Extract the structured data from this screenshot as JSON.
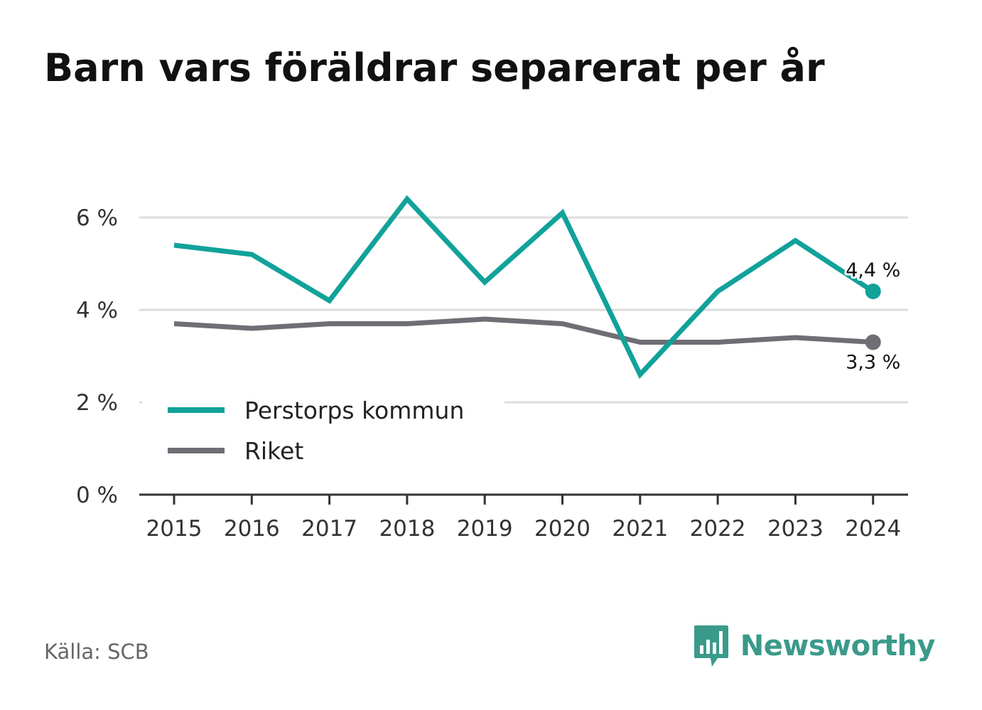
{
  "chart_data": {
    "type": "line",
    "title": "Barn vars föräldrar separerat per år",
    "xlabel": "",
    "ylabel": "",
    "x": [
      "2015",
      "2016",
      "2017",
      "2018",
      "2019",
      "2020",
      "2021",
      "2022",
      "2023",
      "2024"
    ],
    "ylim": [
      0,
      6
    ],
    "yticks": [
      0,
      2,
      4,
      6
    ],
    "ytick_labels": [
      "0 %",
      "2 %",
      "4 %",
      "6 %"
    ],
    "grid": true,
    "legend_position": "bottom-left",
    "series": [
      {
        "name": "Perstorps kommun",
        "color": "#11a29a",
        "values": [
          5.4,
          5.2,
          4.2,
          6.4,
          4.6,
          6.1,
          2.6,
          4.4,
          5.5,
          4.4
        ],
        "end_label": "4,4 %"
      },
      {
        "name": "Riket",
        "color": "#6e6e74",
        "values": [
          3.7,
          3.6,
          3.7,
          3.7,
          3.8,
          3.7,
          3.3,
          3.3,
          3.4,
          3.3
        ],
        "end_label": "3,3 %"
      }
    ],
    "source": "Källa: SCB"
  },
  "brand": {
    "name": "Newsworthy",
    "color": "#3a9a8a",
    "icon": "newsworthy-logo-icon"
  }
}
